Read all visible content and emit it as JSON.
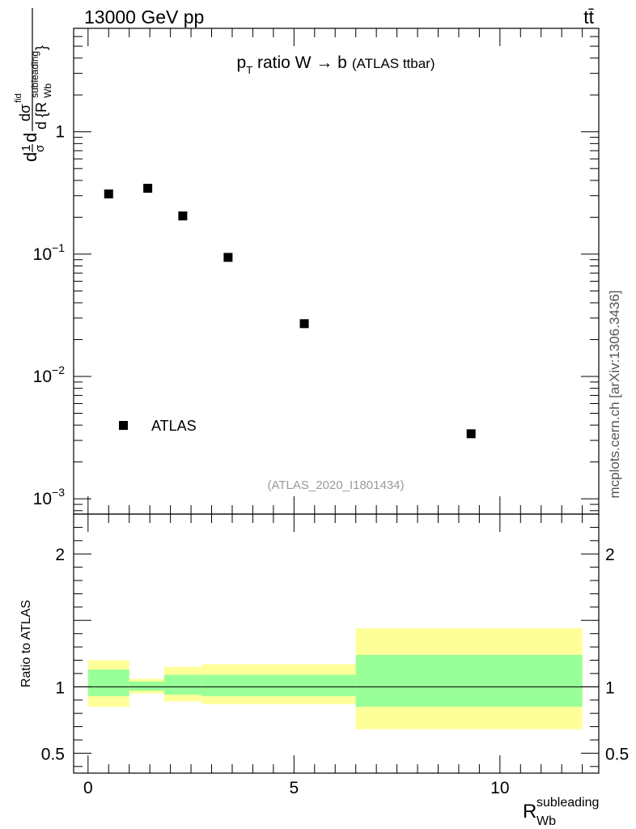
{
  "header": {
    "energy_label": "13000 GeV pp",
    "process_label": "tt̄",
    "side_label": "mcplots.cern.ch [arXiv:1306.3436]"
  },
  "chart_data": [
    {
      "type": "scatter",
      "title_main": "p",
      "title_sub": "T",
      "title_rest": " ratio W → b",
      "title_paren": "(ATLAS ttbar)",
      "watermark": "(ATLAS_2020_I1801434)",
      "ylabel": "d¹/σ dσ/d{R_Wb^subleading}",
      "yscale": "log",
      "ylim": [
        0.00075,
        7.0
      ],
      "xlim": [
        -0.35,
        12.4
      ],
      "y_ticks": [
        {
          "value": 1,
          "label": "1"
        },
        {
          "value": 0.1,
          "label": "10",
          "exp": "−1"
        },
        {
          "value": 0.01,
          "label": "10",
          "exp": "−2"
        },
        {
          "value": 0.001,
          "label": "10",
          "exp": "−3"
        }
      ],
      "legend": {
        "placement": "bottom-left",
        "entries": [
          {
            "name": "ATLAS",
            "marker": "square"
          }
        ]
      },
      "series": [
        {
          "name": "ATLAS",
          "x": [
            0.5,
            1.45,
            2.3,
            3.4,
            5.25,
            9.3
          ],
          "y": [
            0.31,
            0.345,
            0.205,
            0.094,
            0.027,
            0.0034
          ]
        }
      ]
    },
    {
      "type": "area",
      "ylabel": "Ratio to ATLAS",
      "ylim": [
        0.35,
        2.3
      ],
      "y_ticks": [
        {
          "value": 0.5,
          "label": "0.5"
        },
        {
          "value": 1,
          "label": "1"
        },
        {
          "value": 2,
          "label": "2"
        }
      ],
      "x_ticks": [
        {
          "value": 0,
          "label": "0"
        },
        {
          "value": 5,
          "label": "5"
        },
        {
          "value": 10,
          "label": "10"
        }
      ],
      "xlabel_main": "R",
      "xlabel_sub": "Wb",
      "xlabel_sup": "subleading",
      "bands": [
        {
          "x0": 0.0,
          "x1": 1.0,
          "inner": [
            0.93,
            1.13
          ],
          "outer": [
            0.85,
            1.2
          ]
        },
        {
          "x0": 1.0,
          "x1": 1.85,
          "inner": [
            0.97,
            1.04
          ],
          "outer": [
            0.95,
            1.06
          ]
        },
        {
          "x0": 1.85,
          "x1": 2.75,
          "inner": [
            0.94,
            1.09
          ],
          "outer": [
            0.89,
            1.15
          ]
        },
        {
          "x0": 2.75,
          "x1": 6.5,
          "inner": [
            0.93,
            1.09
          ],
          "outer": [
            0.87,
            1.17
          ]
        },
        {
          "x0": 6.5,
          "x1": 12.0,
          "inner": [
            0.85,
            1.24
          ],
          "outer": [
            0.68,
            1.44
          ]
        }
      ],
      "reference_line": 1,
      "colors": {
        "inner": "#99ff99",
        "outer": "#ffff99"
      }
    }
  ]
}
